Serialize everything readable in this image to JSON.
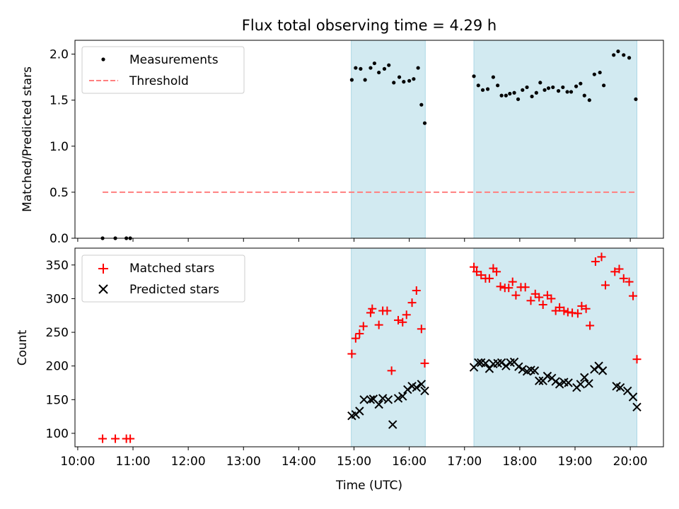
{
  "figure": {
    "title": "Flux total observing time = 4.29 h"
  },
  "colors": {
    "shade": "#add8e6",
    "threshold": "#ff7f7f",
    "matched": "#ff0000",
    "predicted": "#000000",
    "measurement": "#000000"
  },
  "chart_data": [
    {
      "type": "scatter",
      "ylabel": "Matched/Predicted stars",
      "xlim": [
        9.95,
        20.6
      ],
      "ylim": [
        0,
        2.15
      ],
      "yticks": [
        0.0,
        0.5,
        1.0,
        1.5,
        2.0
      ],
      "ytick_labels": [
        "0.0",
        "0.5",
        "1.0",
        "1.5",
        "2.0"
      ],
      "shaded_intervals": [
        [
          14.95,
          16.29
        ],
        [
          17.17,
          20.12
        ]
      ],
      "legend": {
        "position": "upper-left",
        "entries": [
          "Measurements",
          "Threshold"
        ]
      },
      "series": [
        {
          "name": "Measurements",
          "marker": "dot",
          "points": [
            [
              10.45,
              0.0
            ],
            [
              10.68,
              0.0
            ],
            [
              10.88,
              0.0
            ],
            [
              10.95,
              0.0
            ],
            [
              14.96,
              1.72
            ],
            [
              15.03,
              1.85
            ],
            [
              15.12,
              1.84
            ],
            [
              15.2,
              1.72
            ],
            [
              15.3,
              1.85
            ],
            [
              15.37,
              1.9
            ],
            [
              15.45,
              1.8
            ],
            [
              15.55,
              1.84
            ],
            [
              15.63,
              1.88
            ],
            [
              15.72,
              1.69
            ],
            [
              15.82,
              1.75
            ],
            [
              15.9,
              1.7
            ],
            [
              16.0,
              1.71
            ],
            [
              16.08,
              1.73
            ],
            [
              16.16,
              1.85
            ],
            [
              16.22,
              1.45
            ],
            [
              16.28,
              1.25
            ],
            [
              17.17,
              1.76
            ],
            [
              17.25,
              1.66
            ],
            [
              17.33,
              1.61
            ],
            [
              17.42,
              1.62
            ],
            [
              17.52,
              1.75
            ],
            [
              17.6,
              1.66
            ],
            [
              17.67,
              1.55
            ],
            [
              17.75,
              1.55
            ],
            [
              17.82,
              1.57
            ],
            [
              17.9,
              1.58
            ],
            [
              17.97,
              1.51
            ],
            [
              18.05,
              1.61
            ],
            [
              18.13,
              1.64
            ],
            [
              18.22,
              1.54
            ],
            [
              18.3,
              1.58
            ],
            [
              18.37,
              1.69
            ],
            [
              18.45,
              1.61
            ],
            [
              18.52,
              1.63
            ],
            [
              18.6,
              1.64
            ],
            [
              18.7,
              1.6
            ],
            [
              18.78,
              1.64
            ],
            [
              18.86,
              1.59
            ],
            [
              18.93,
              1.59
            ],
            [
              19.02,
              1.65
            ],
            [
              19.1,
              1.68
            ],
            [
              19.17,
              1.55
            ],
            [
              19.26,
              1.5
            ],
            [
              19.35,
              1.78
            ],
            [
              19.45,
              1.8
            ],
            [
              19.52,
              1.66
            ],
            [
              19.7,
              1.99
            ],
            [
              19.78,
              2.03
            ],
            [
              19.88,
              1.99
            ],
            [
              19.98,
              1.96
            ],
            [
              20.1,
              1.51
            ]
          ]
        },
        {
          "name": "Threshold",
          "marker": "dashed-line",
          "points": [
            [
              10.45,
              0.5
            ],
            [
              20.12,
              0.5
            ]
          ]
        }
      ]
    },
    {
      "type": "scatter",
      "xlabel": "Time (UTC)",
      "ylabel": "Count",
      "xlim": [
        9.95,
        20.6
      ],
      "ylim": [
        80,
        375
      ],
      "xticks": [
        10,
        11,
        12,
        13,
        14,
        15,
        16,
        17,
        18,
        19,
        20
      ],
      "xtick_labels": [
        "10:00",
        "11:00",
        "12:00",
        "13:00",
        "14:00",
        "15:00",
        "16:00",
        "17:00",
        "18:00",
        "19:00",
        "20:00"
      ],
      "yticks": [
        100,
        150,
        200,
        250,
        300,
        350
      ],
      "ytick_labels": [
        "100",
        "150",
        "200",
        "250",
        "300",
        "350"
      ],
      "shaded_intervals": [
        [
          14.95,
          16.29
        ],
        [
          17.17,
          20.12
        ]
      ],
      "legend": {
        "position": "upper-left",
        "entries": [
          "Matched stars",
          "Predicted stars"
        ]
      },
      "series": [
        {
          "name": "Matched stars",
          "marker": "plus",
          "points": [
            [
              10.45,
              92
            ],
            [
              10.68,
              92
            ],
            [
              10.88,
              92
            ],
            [
              10.95,
              92
            ],
            [
              14.96,
              218
            ],
            [
              15.03,
              241
            ],
            [
              15.1,
              248
            ],
            [
              15.17,
              259
            ],
            [
              15.3,
              279
            ],
            [
              15.33,
              285
            ],
            [
              15.45,
              261
            ],
            [
              15.52,
              282
            ],
            [
              15.6,
              282
            ],
            [
              15.68,
              193
            ],
            [
              15.8,
              268
            ],
            [
              15.88,
              265
            ],
            [
              15.95,
              276
            ],
            [
              16.05,
              294
            ],
            [
              16.13,
              312
            ],
            [
              16.22,
              255
            ],
            [
              16.28,
              204
            ],
            [
              17.17,
              347
            ],
            [
              17.22,
              340
            ],
            [
              17.3,
              335
            ],
            [
              17.38,
              330
            ],
            [
              17.45,
              330
            ],
            [
              17.52,
              345
            ],
            [
              17.58,
              340
            ],
            [
              17.65,
              318
            ],
            [
              17.73,
              316
            ],
            [
              17.8,
              316
            ],
            [
              17.87,
              325
            ],
            [
              17.93,
              305
            ],
            [
              18.02,
              317
            ],
            [
              18.1,
              317
            ],
            [
              18.2,
              297
            ],
            [
              18.28,
              307
            ],
            [
              18.35,
              302
            ],
            [
              18.42,
              291
            ],
            [
              18.5,
              305
            ],
            [
              18.57,
              300
            ],
            [
              18.65,
              282
            ],
            [
              18.72,
              287
            ],
            [
              18.8,
              282
            ],
            [
              18.87,
              280
            ],
            [
              18.95,
              279
            ],
            [
              19.05,
              278
            ],
            [
              19.12,
              289
            ],
            [
              19.2,
              285
            ],
            [
              19.27,
              260
            ],
            [
              19.37,
              355
            ],
            [
              19.48,
              362
            ],
            [
              19.55,
              320
            ],
            [
              19.72,
              340
            ],
            [
              19.8,
              344
            ],
            [
              19.88,
              330
            ],
            [
              19.98,
              325
            ],
            [
              20.05,
              304
            ],
            [
              20.12,
              210
            ]
          ]
        },
        {
          "name": "Predicted stars",
          "marker": "x",
          "points": [
            [
              14.96,
              126
            ],
            [
              15.03,
              128
            ],
            [
              15.1,
              133
            ],
            [
              15.18,
              150
            ],
            [
              15.3,
              150
            ],
            [
              15.35,
              151
            ],
            [
              15.45,
              143
            ],
            [
              15.52,
              152
            ],
            [
              15.62,
              150
            ],
            [
              15.7,
              113
            ],
            [
              15.8,
              152
            ],
            [
              15.88,
              155
            ],
            [
              15.97,
              165
            ],
            [
              16.05,
              170
            ],
            [
              16.13,
              168
            ],
            [
              16.22,
              173
            ],
            [
              16.28,
              163
            ],
            [
              17.17,
              198
            ],
            [
              17.25,
              205
            ],
            [
              17.3,
              205
            ],
            [
              17.38,
              204
            ],
            [
              17.45,
              196
            ],
            [
              17.52,
              203
            ],
            [
              17.6,
              204
            ],
            [
              17.67,
              205
            ],
            [
              17.75,
              200
            ],
            [
              17.83,
              205
            ],
            [
              17.9,
              206
            ],
            [
              17.98,
              199
            ],
            [
              18.05,
              195
            ],
            [
              18.13,
              192
            ],
            [
              18.2,
              194
            ],
            [
              18.27,
              193
            ],
            [
              18.35,
              178
            ],
            [
              18.42,
              178
            ],
            [
              18.5,
              185
            ],
            [
              18.58,
              182
            ],
            [
              18.65,
              177
            ],
            [
              18.72,
              173
            ],
            [
              18.8,
              176
            ],
            [
              18.88,
              175
            ],
            [
              19.03,
              168
            ],
            [
              19.1,
              173
            ],
            [
              19.17,
              183
            ],
            [
              19.25,
              174
            ],
            [
              19.35,
              195
            ],
            [
              19.43,
              200
            ],
            [
              19.5,
              193
            ],
            [
              19.75,
              170
            ],
            [
              19.82,
              168
            ],
            [
              19.95,
              163
            ],
            [
              20.05,
              154
            ],
            [
              20.12,
              139
            ]
          ]
        }
      ]
    }
  ]
}
